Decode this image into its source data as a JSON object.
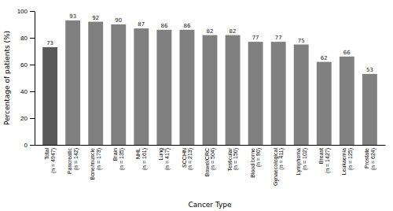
{
  "chart_data": {
    "type": "bar",
    "categories": [
      "Total\n(n = 4947)",
      "Pancreatic\n(n = 142)",
      "Bone/muscle\n(n = 173)",
      "Brain\n(n = 135)",
      "NHL\n(n = 161)",
      "Lung\n(n = 417)",
      "SCCHN\n(n = 213)",
      "Bowel/CRC\n(n = 504)",
      "Testicular\n(n = 150)",
      "Blood borne\n(n = 90)",
      "Gynaecological\n(n = 411)",
      "Lymphoma\n(n = 102)",
      "Breast\n(n = 1427)",
      "Leukaemia\n(n = 125)",
      "Prostate\n(n = 624)"
    ],
    "values": [
      73,
      93,
      92,
      90,
      87,
      86,
      86,
      82,
      82,
      77,
      77,
      75,
      62,
      66,
      53
    ],
    "colors": [
      "#595959",
      "#808080",
      "#808080",
      "#808080",
      "#808080",
      "#808080",
      "#808080",
      "#808080",
      "#808080",
      "#808080",
      "#808080",
      "#808080",
      "#808080",
      "#808080",
      "#808080"
    ],
    "xlabel": "Cancer Type",
    "ylabel": "Percentage of patients (%)",
    "ylim": [
      0,
      100
    ],
    "yticks": [
      0,
      20,
      40,
      60,
      80,
      100
    ],
    "grid": false,
    "data_labels": true
  }
}
